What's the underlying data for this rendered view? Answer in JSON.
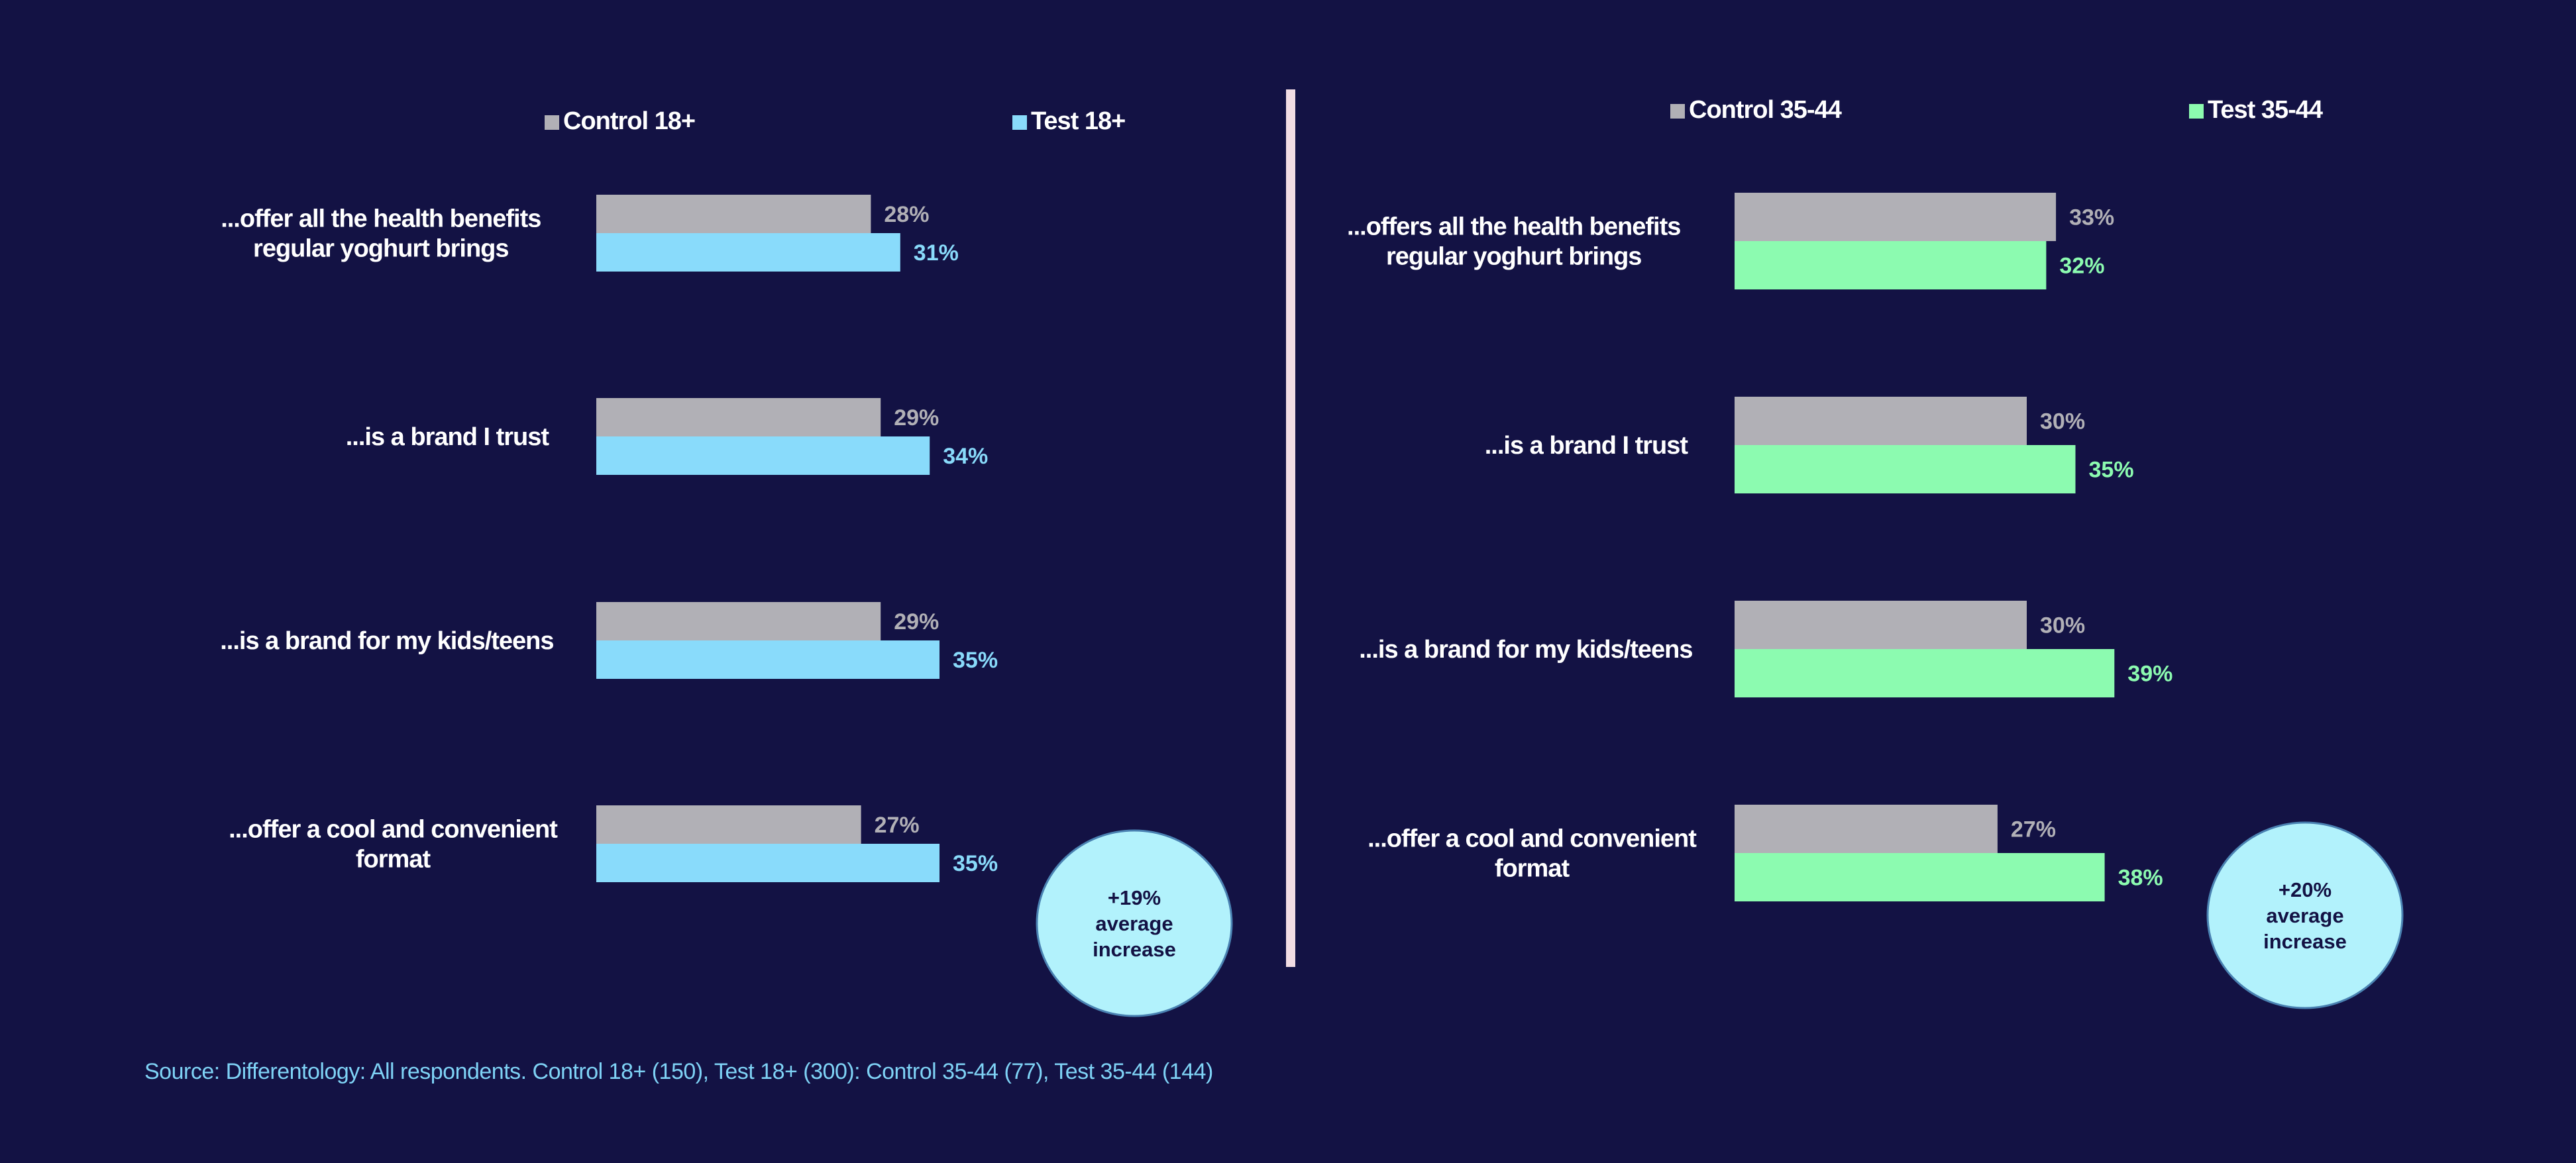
{
  "chart_data": [
    {
      "type": "bar",
      "orientation": "horizontal",
      "categories": [
        "...offer all the health benefits\nregular yoghurt brings",
        "...is a brand I trust",
        "...is a brand for my kids/teens",
        "...offer a cool and convenient\nformat"
      ],
      "series": [
        {
          "name": "Control 18+",
          "values": [
            28,
            29,
            29,
            27
          ],
          "labels": [
            "28%",
            "29%",
            "29%",
            "27%"
          ],
          "color": "#b1b0b6"
        },
        {
          "name": "Test 18+",
          "values": [
            31,
            34,
            35,
            35
          ],
          "labels": [
            "31%",
            "34%",
            "35%",
            "35%"
          ],
          "color": "#89dbfb"
        }
      ],
      "xlim": [
        0,
        80
      ],
      "grid": false,
      "legend_position": "top",
      "annotation": {
        "lines": [
          "+19%",
          "average",
          "increase"
        ]
      }
    },
    {
      "type": "bar",
      "orientation": "horizontal",
      "categories": [
        "...offers all the health benefits\nregular yoghurt brings",
        "...is a brand I trust",
        "...is a brand for my kids/teens",
        "...offer a cool and convenient\nformat"
      ],
      "series": [
        {
          "name": "Control 35-44",
          "values": [
            33,
            30,
            30,
            27
          ],
          "labels": [
            "33%",
            "30%",
            "30%",
            "27%"
          ],
          "color": "#b1b0b6"
        },
        {
          "name": "Test 35-44",
          "values": [
            32,
            35,
            39,
            38
          ],
          "labels": [
            "32%",
            "35%",
            "39%",
            "38%"
          ],
          "color": "#8cfbb0"
        }
      ],
      "xlim": [
        0,
        80
      ],
      "grid": false,
      "legend_position": "top",
      "annotation": {
        "lines": [
          "+20%",
          "average",
          "increase"
        ]
      }
    }
  ],
  "colors": {
    "background": "#131244",
    "divider": "#f1dce3",
    "badge_fill": "#b2f2fc",
    "badge_stroke": "#4a82b2",
    "source_text": "#7fd3f6"
  },
  "source": "Source: Differentology: All respondents. Control 18+ (150), Test 18+ (300): Control 35-44 (77), Test 35-44 (144)"
}
